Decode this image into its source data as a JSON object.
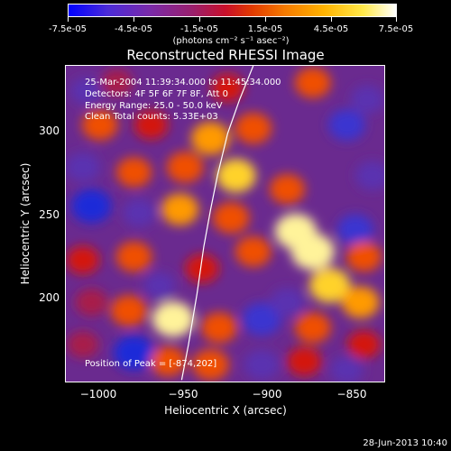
{
  "colorbar": {
    "tick_labels": [
      "-7.5e-05",
      "-4.5e-05",
      "-1.5e-05",
      "1.5e-05",
      "4.5e-05",
      "7.5e-05"
    ],
    "units_label": "(photons cm⁻² s⁻¹ asec⁻²)"
  },
  "chart_data": {
    "type": "heatmap",
    "title": "Reconstructed RHESSI Image",
    "xlabel": "Heliocentric X (arcsec)",
    "ylabel": "Heliocentric Y (arcsec)",
    "xlim": [
      -1015,
      -827
    ],
    "ylim": [
      147,
      335
    ],
    "zlim": [
      -7.5e-05,
      7.5e-05
    ],
    "x_ticks": [
      -1000,
      -950,
      -900,
      -850
    ],
    "x_tick_labels": [
      "−1000",
      "−950",
      "−900",
      "−850"
    ],
    "y_ticks": [
      200,
      250,
      300
    ],
    "y_tick_labels": [
      "200",
      "250",
      "300"
    ],
    "limb_curve": {
      "description_color": "#ffffff",
      "points": [
        [
          -947,
          149
        ],
        [
          -943,
          170
        ],
        [
          -938,
          200
        ],
        [
          -934,
          228
        ],
        [
          -930,
          250
        ],
        [
          -926,
          270
        ],
        [
          -920,
          295
        ],
        [
          -913,
          315
        ],
        [
          -905,
          335
        ]
      ]
    },
    "annotations": [
      "25-Mar-2004 11:39:34.000 to 11:45:34.000",
      "Detectors: 4F 5F 6F 7F 8F, Att 0",
      "Energy Range: 25.0 - 50.0 keV",
      "Clean     Total counts: 5.33E+03",
      "Position of Peak = [-874,202]"
    ],
    "blobs": [
      {
        "x": -1003,
        "y": 320,
        "v": -0.2
      },
      {
        "x": -985,
        "y": 325,
        "v": 0.2
      },
      {
        "x": -920,
        "y": 322,
        "v": 0.3
      },
      {
        "x": -870,
        "y": 325,
        "v": 0.5
      },
      {
        "x": -995,
        "y": 300,
        "v": 0.5
      },
      {
        "x": -965,
        "y": 300,
        "v": 0.35
      },
      {
        "x": -930,
        "y": 292,
        "v": 0.7
      },
      {
        "x": -905,
        "y": 298,
        "v": 0.55
      },
      {
        "x": -850,
        "y": 300,
        "v": -0.55
      },
      {
        "x": -838,
        "y": 315,
        "v": -0.3
      },
      {
        "x": -1005,
        "y": 275,
        "v": -0.4
      },
      {
        "x": -975,
        "y": 272,
        "v": 0.45
      },
      {
        "x": -945,
        "y": 275,
        "v": 0.55
      },
      {
        "x": -915,
        "y": 270,
        "v": 0.75
      },
      {
        "x": -885,
        "y": 262,
        "v": 0.45
      },
      {
        "x": -835,
        "y": 270,
        "v": -0.35
      },
      {
        "x": -1000,
        "y": 252,
        "v": -0.8
      },
      {
        "x": -972,
        "y": 248,
        "v": -0.3
      },
      {
        "x": -948,
        "y": 250,
        "v": 0.6
      },
      {
        "x": -918,
        "y": 245,
        "v": 0.55
      },
      {
        "x": -880,
        "y": 237,
        "v": 0.9
      },
      {
        "x": -870,
        "y": 225,
        "v": 1.0
      },
      {
        "x": -845,
        "y": 238,
        "v": -0.5
      },
      {
        "x": -840,
        "y": 222,
        "v": 0.45
      },
      {
        "x": -1005,
        "y": 220,
        "v": 0.3
      },
      {
        "x": -975,
        "y": 222,
        "v": 0.5
      },
      {
        "x": -960,
        "y": 205,
        "v": -0.2
      },
      {
        "x": -935,
        "y": 215,
        "v": 0.35
      },
      {
        "x": -905,
        "y": 225,
        "v": 0.5
      },
      {
        "x": -860,
        "y": 205,
        "v": 0.85
      },
      {
        "x": -842,
        "y": 195,
        "v": 0.6
      },
      {
        "x": -1000,
        "y": 195,
        "v": 0.25
      },
      {
        "x": -978,
        "y": 190,
        "v": 0.55
      },
      {
        "x": -952,
        "y": 185,
        "v": 0.9
      },
      {
        "x": -925,
        "y": 180,
        "v": 0.5
      },
      {
        "x": -900,
        "y": 185,
        "v": -0.7
      },
      {
        "x": -885,
        "y": 195,
        "v": -0.35
      },
      {
        "x": -870,
        "y": 180,
        "v": 0.5
      },
      {
        "x": -840,
        "y": 170,
        "v": 0.3
      },
      {
        "x": -1005,
        "y": 170,
        "v": 0.2
      },
      {
        "x": -975,
        "y": 165,
        "v": -0.85
      },
      {
        "x": -955,
        "y": 160,
        "v": 0.45
      },
      {
        "x": -930,
        "y": 158,
        "v": 0.55
      },
      {
        "x": -900,
        "y": 158,
        "v": -0.45
      },
      {
        "x": -875,
        "y": 160,
        "v": 0.4
      },
      {
        "x": -850,
        "y": 155,
        "v": -0.3
      }
    ]
  },
  "footer": {
    "date": "28-Jun-2013 10:40"
  }
}
